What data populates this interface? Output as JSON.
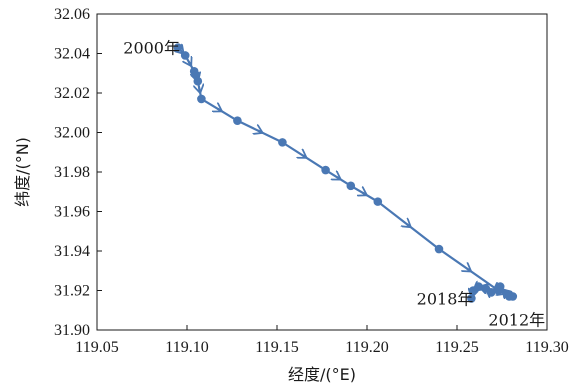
{
  "chart_data": {
    "type": "line",
    "title": "",
    "xlabel": "经度/(°E)",
    "ylabel": "纬度/(°N)",
    "xlim": [
      119.05,
      119.3
    ],
    "ylim": [
      31.9,
      32.06
    ],
    "xticks": [
      "119.05",
      "119.10",
      "119.15",
      "119.20",
      "119.25",
      "119.30"
    ],
    "yticks": [
      "31.90",
      "31.92",
      "31.94",
      "31.96",
      "31.98",
      "32.00",
      "32.02",
      "32.04",
      "32.06"
    ],
    "grid": false,
    "line_color": "#4a78b4",
    "series": [
      {
        "x": [
          119.095,
          119.099,
          119.104,
          119.105,
          119.106,
          119.108,
          119.128,
          119.153,
          119.177,
          119.191,
          119.206,
          119.24,
          119.273,
          119.278,
          119.281,
          119.279,
          119.274,
          119.269,
          119.266,
          119.262,
          119.259,
          119.258
        ],
        "y": [
          32.043,
          32.039,
          32.031,
          32.029,
          32.026,
          32.017,
          32.006,
          31.995,
          31.981,
          31.973,
          31.965,
          31.941,
          31.92,
          31.918,
          31.917,
          31.917,
          31.922,
          31.919,
          31.921,
          31.922,
          31.92,
          31.916
        ]
      }
    ],
    "annotations": [
      {
        "text": "2000年",
        "x": 119.095,
        "y": 32.043,
        "anchor": "end"
      },
      {
        "text": "2012年",
        "x": 119.281,
        "y": 31.917,
        "anchor": "below"
      },
      {
        "text": "2018年",
        "x": 119.258,
        "y": 31.916,
        "anchor": "end"
      }
    ]
  }
}
